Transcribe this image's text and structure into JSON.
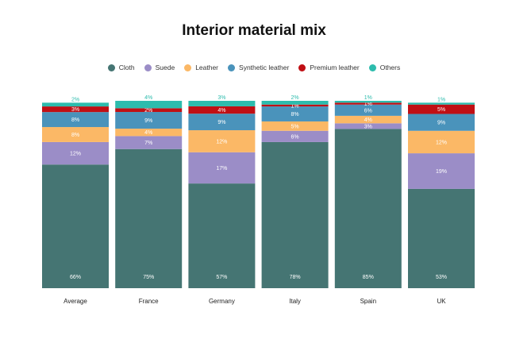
{
  "chart_data": {
    "type": "bar",
    "stacked": true,
    "title": "Interior material mix",
    "categories": [
      "Average",
      "France",
      "Germany",
      "Italy",
      "Spain",
      "UK"
    ],
    "series": [
      {
        "name": "Cloth",
        "color": "#457573",
        "values": [
          66,
          75,
          57,
          78,
          85,
          53
        ],
        "labels": [
          "66%",
          "75%",
          "57%",
          "78%",
          "85%",
          "53%"
        ]
      },
      {
        "name": "Suede",
        "color": "#9b8dc7",
        "values": [
          12,
          7,
          17,
          6,
          3,
          19
        ],
        "labels": [
          "12%",
          "7%",
          "17%",
          "6%",
          "3%",
          "19%"
        ]
      },
      {
        "name": "Leather",
        "color": "#fbb866",
        "values": [
          8,
          4,
          12,
          5,
          4,
          12
        ],
        "labels": [
          "8%",
          "4%",
          "12%",
          "5%",
          "4%",
          "12%"
        ]
      },
      {
        "name": "Synthetic leather",
        "color": "#4a93bb",
        "values": [
          8,
          9,
          9,
          8,
          6,
          9
        ],
        "labels": [
          "8%",
          "9%",
          "9%",
          "8%",
          "6%",
          "9%"
        ]
      },
      {
        "name": "Premium leather",
        "color": "#c00f14",
        "values": [
          3,
          2,
          4,
          1,
          1,
          5
        ],
        "labels": [
          "3%",
          "2%",
          "4%",
          "1%",
          "1%",
          "5%"
        ]
      },
      {
        "name": "Others",
        "color": "#2dbcad",
        "values": [
          2,
          4,
          3,
          2,
          1,
          1
        ],
        "labels": [
          "2%",
          "4%",
          "3%",
          "2%",
          "1%",
          "1%"
        ]
      }
    ],
    "ylim": [
      0,
      100
    ],
    "grid": false,
    "legend_position": "top"
  }
}
